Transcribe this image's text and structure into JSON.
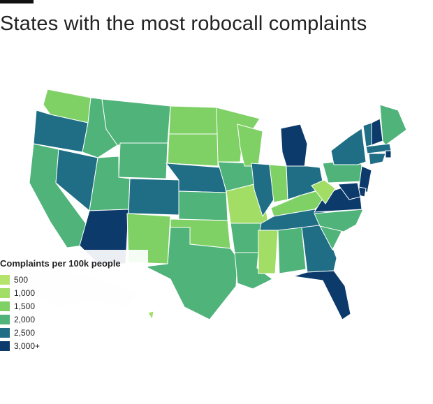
{
  "title": "States with the most robocall complaints",
  "legend": {
    "title": "Complaints per 100k people",
    "items": [
      {
        "label": "500",
        "color": "#b5e36b"
      },
      {
        "label": "1,000",
        "color": "#a2dd66"
      },
      {
        "label": "1,500",
        "color": "#7fd166"
      },
      {
        "label": "2,000",
        "color": "#4fb37a"
      },
      {
        "label": "2,500",
        "color": "#1f6e86"
      },
      {
        "label": "3,000+",
        "color": "#0c3a6b"
      }
    ]
  },
  "map_data": {
    "bins": [
      "500",
      "1,000",
      "1,500",
      "2,000",
      "2,500",
      "3,000+"
    ],
    "states": [
      {
        "id": "WA",
        "bin": 2
      },
      {
        "id": "OR",
        "bin": 4
      },
      {
        "id": "CA",
        "bin": 3
      },
      {
        "id": "NV",
        "bin": 4
      },
      {
        "id": "ID",
        "bin": 3
      },
      {
        "id": "MT",
        "bin": 3
      },
      {
        "id": "WY",
        "bin": 3
      },
      {
        "id": "UT",
        "bin": 3
      },
      {
        "id": "AZ",
        "bin": 5
      },
      {
        "id": "CO",
        "bin": 4
      },
      {
        "id": "NM",
        "bin": 2
      },
      {
        "id": "ND",
        "bin": 2
      },
      {
        "id": "SD",
        "bin": 2
      },
      {
        "id": "NE",
        "bin": 4
      },
      {
        "id": "KS",
        "bin": 3
      },
      {
        "id": "OK",
        "bin": 2
      },
      {
        "id": "TX",
        "bin": 3
      },
      {
        "id": "MN",
        "bin": 2
      },
      {
        "id": "IA",
        "bin": 3
      },
      {
        "id": "MO",
        "bin": 1
      },
      {
        "id": "AR",
        "bin": 3
      },
      {
        "id": "LA",
        "bin": 3
      },
      {
        "id": "WI",
        "bin": 2
      },
      {
        "id": "IL",
        "bin": 4
      },
      {
        "id": "MI",
        "bin": 5
      },
      {
        "id": "IN",
        "bin": 2
      },
      {
        "id": "OH",
        "bin": 4
      },
      {
        "id": "KY",
        "bin": 2
      },
      {
        "id": "TN",
        "bin": 4
      },
      {
        "id": "MS",
        "bin": 1
      },
      {
        "id": "AL",
        "bin": 3
      },
      {
        "id": "GA",
        "bin": 4
      },
      {
        "id": "FL",
        "bin": 5
      },
      {
        "id": "SC",
        "bin": 3
      },
      {
        "id": "NC",
        "bin": 3
      },
      {
        "id": "VA",
        "bin": 5
      },
      {
        "id": "WV",
        "bin": 1
      },
      {
        "id": "PA",
        "bin": 3
      },
      {
        "id": "NY",
        "bin": 4
      },
      {
        "id": "VT",
        "bin": 4
      },
      {
        "id": "NH",
        "bin": 5
      },
      {
        "id": "ME",
        "bin": 3
      },
      {
        "id": "MA",
        "bin": 4
      },
      {
        "id": "RI",
        "bin": 5
      },
      {
        "id": "CT",
        "bin": 4
      },
      {
        "id": "NJ",
        "bin": 5
      },
      {
        "id": "DE",
        "bin": 5
      },
      {
        "id": "MD",
        "bin": 5
      },
      {
        "id": "AK",
        "bin": 3
      },
      {
        "id": "HI",
        "bin": 1
      }
    ]
  }
}
